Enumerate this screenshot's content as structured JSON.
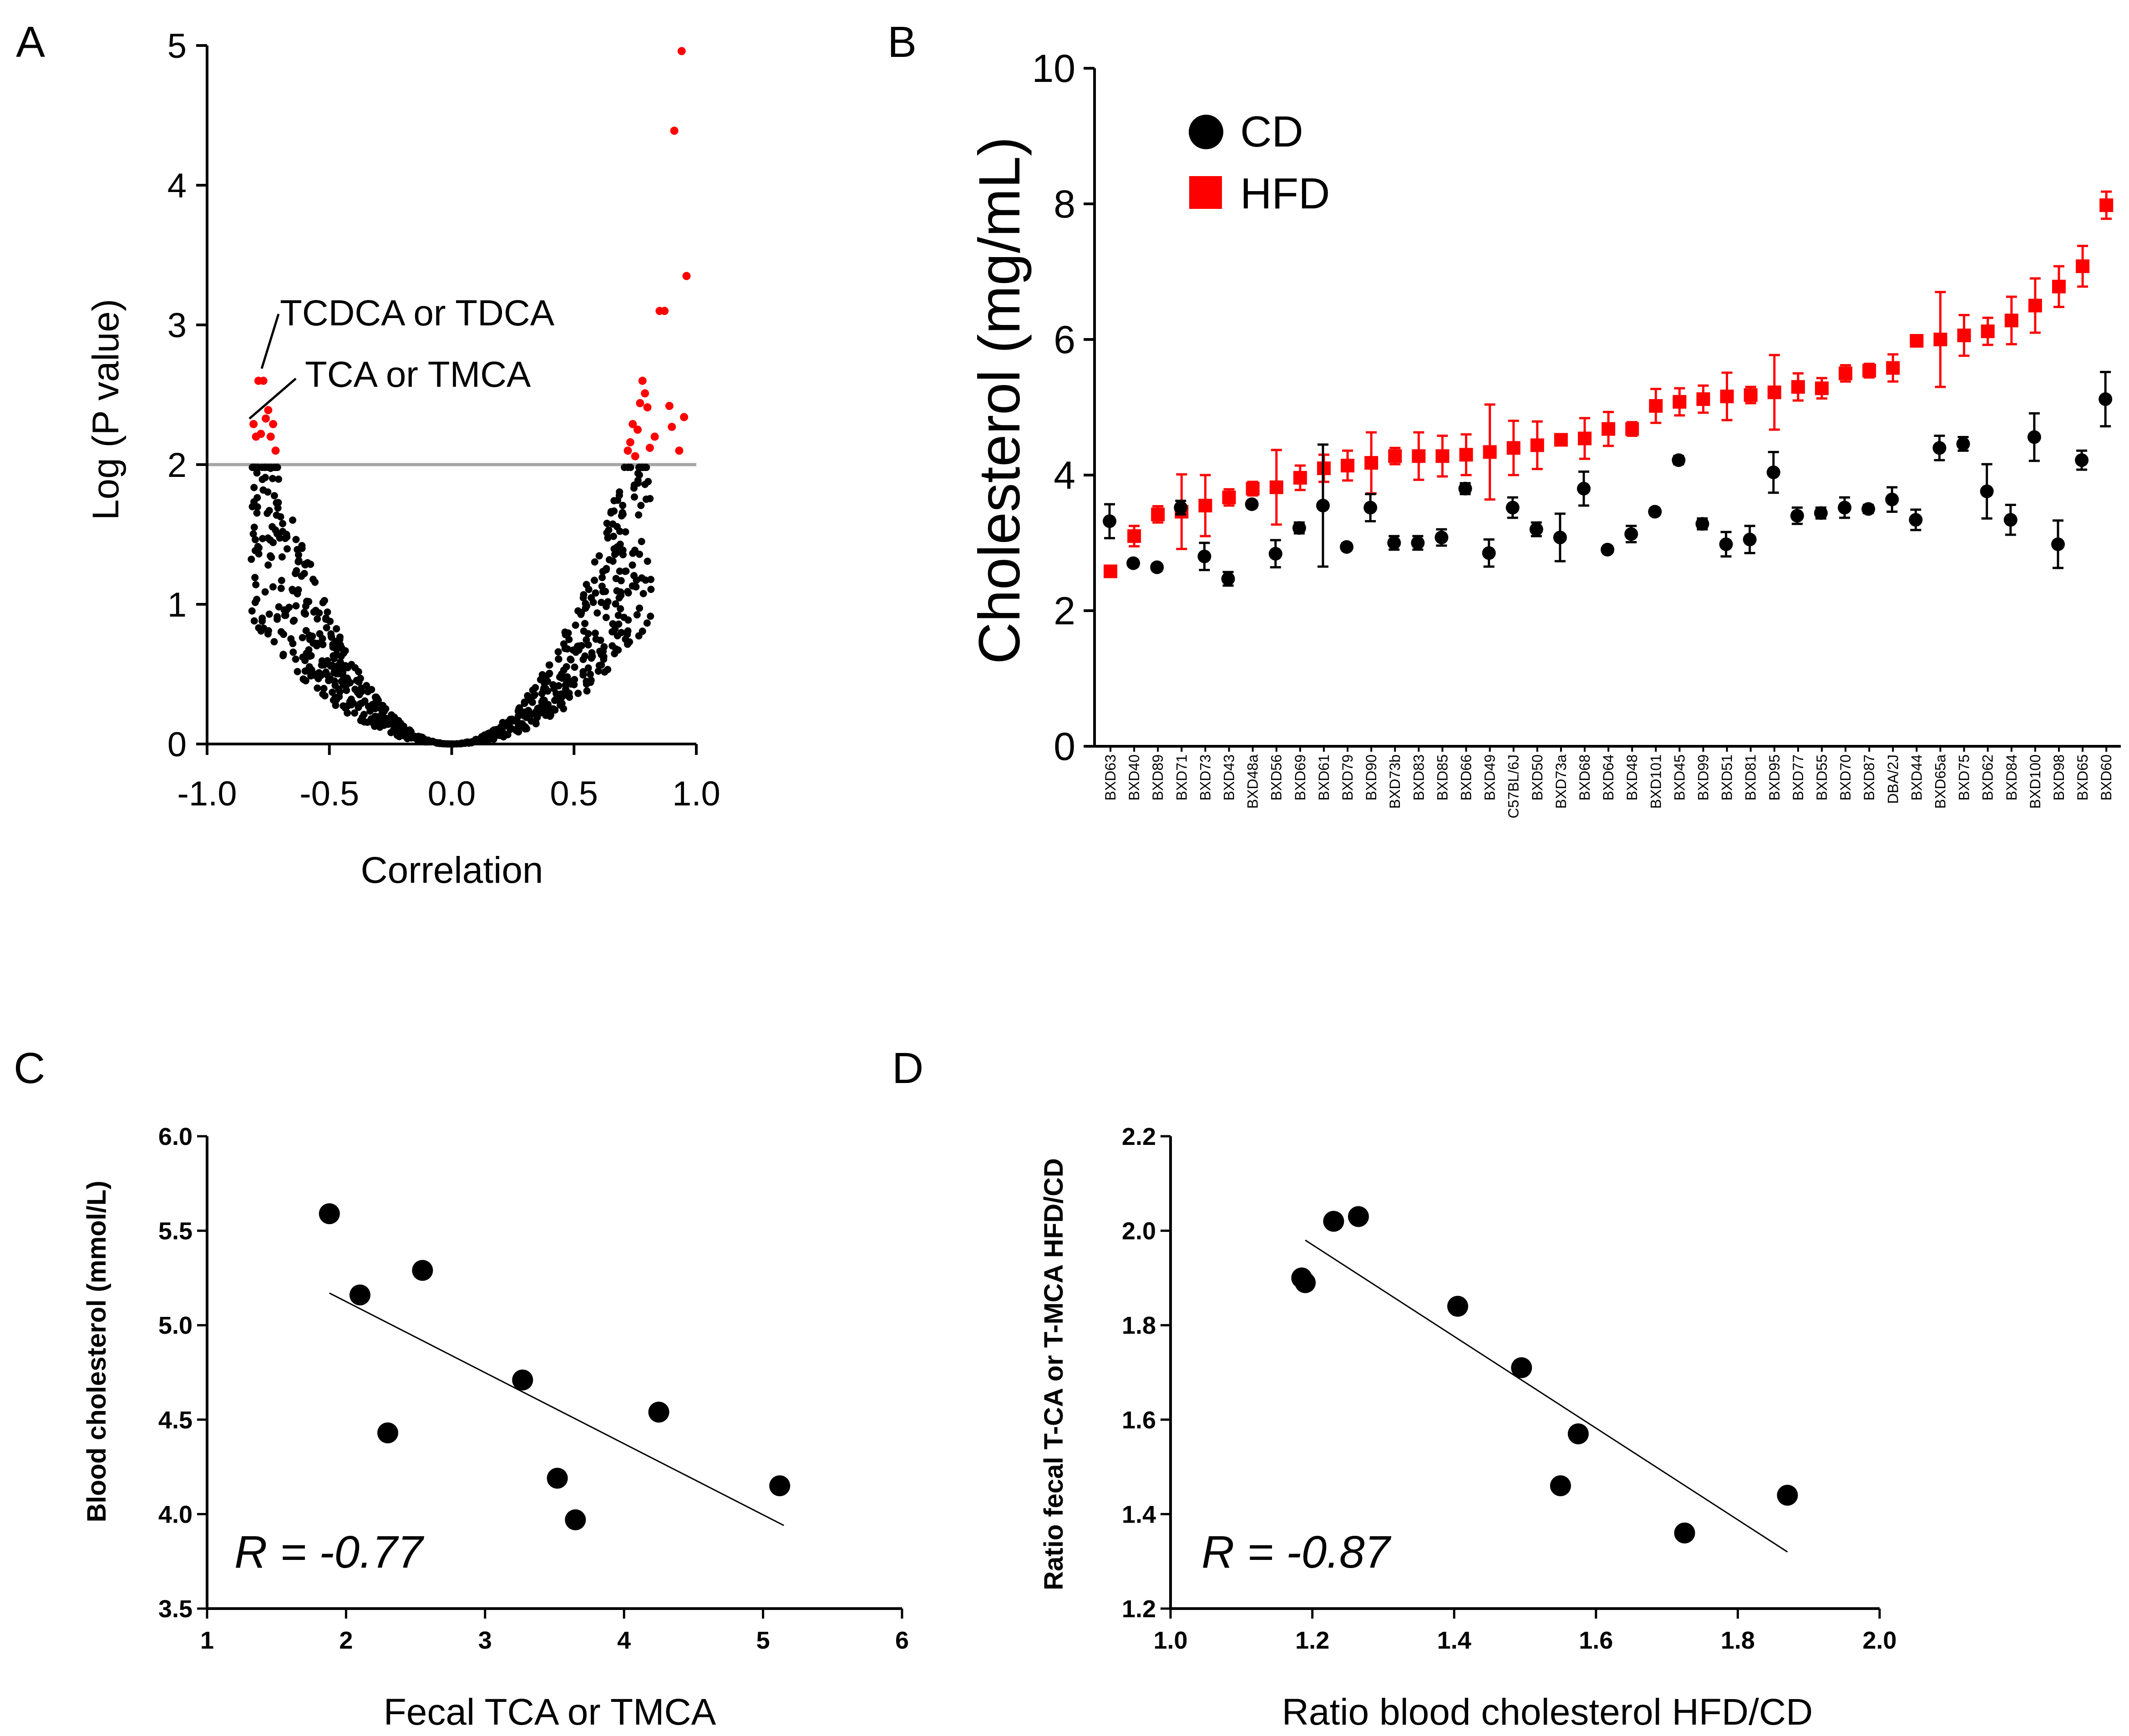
{
  "colors": {
    "cd": "#000000",
    "hfd": "#ff0000",
    "threshold": "#a6a6a6"
  },
  "chart_data": [
    {
      "panel": "A",
      "type": "scatter",
      "title": "",
      "xlabel": "Correlation",
      "ylabel": "Log (P value)",
      "xlim": [
        -1.0,
        1.0
      ],
      "ylim": [
        0,
        5
      ],
      "xticks": [
        "-1.0",
        "-0.5",
        "0.0",
        "0.5",
        "1.0"
      ],
      "yticks": [
        "0",
        "1",
        "2",
        "3",
        "4",
        "5"
      ],
      "threshold": 2,
      "annotations": [
        "TCDCA or TDCA",
        "TCA or TMCA"
      ],
      "significant": [
        {
          "x": -0.81,
          "y": 2.29
        },
        {
          "x": -0.8,
          "y": 2.2
        },
        {
          "x": -0.79,
          "y": 2.6
        },
        {
          "x": -0.77,
          "y": 2.6
        },
        {
          "x": -0.78,
          "y": 2.22
        },
        {
          "x": -0.76,
          "y": 2.33
        },
        {
          "x": -0.75,
          "y": 2.39
        },
        {
          "x": -0.74,
          "y": 2.2
        },
        {
          "x": -0.73,
          "y": 2.29
        },
        {
          "x": -0.72,
          "y": 2.1
        },
        {
          "x": 0.72,
          "y": 2.1
        },
        {
          "x": 0.73,
          "y": 2.16
        },
        {
          "x": 0.74,
          "y": 2.29
        },
        {
          "x": 0.75,
          "y": 2.06
        },
        {
          "x": 0.76,
          "y": 2.25
        },
        {
          "x": 0.77,
          "y": 2.44
        },
        {
          "x": 0.78,
          "y": 2.6
        },
        {
          "x": 0.79,
          "y": 2.51
        },
        {
          "x": 0.8,
          "y": 2.41
        },
        {
          "x": 0.81,
          "y": 2.12
        },
        {
          "x": 0.83,
          "y": 2.2
        },
        {
          "x": 0.85,
          "y": 3.1
        },
        {
          "x": 0.87,
          "y": 3.1
        },
        {
          "x": 0.89,
          "y": 2.42
        },
        {
          "x": 0.9,
          "y": 2.27
        },
        {
          "x": 0.91,
          "y": 4.39
        },
        {
          "x": 0.93,
          "y": 2.1
        },
        {
          "x": 0.95,
          "y": 2.34
        },
        {
          "x": 0.94,
          "y": 4.96
        },
        {
          "x": 0.96,
          "y": 3.35
        }
      ]
    },
    {
      "panel": "B",
      "type": "scatter",
      "title": "",
      "xlabel": "",
      "ylabel": "Cholesterol (mg/mL)",
      "ylim": [
        0,
        10
      ],
      "yticks": [
        "0",
        "2",
        "4",
        "6",
        "8",
        "10"
      ],
      "legend": [
        {
          "name": "CD",
          "marker": "circle"
        },
        {
          "name": "HFD",
          "marker": "square"
        }
      ],
      "categories": [
        "BXD63",
        "BXD40",
        "BXD89",
        "BXD71",
        "BXD73",
        "BXD43",
        "BXD48a",
        "BXD56",
        "BXD69",
        "BXD61",
        "BXD79",
        "BXD90",
        "BXD73b",
        "BXD83",
        "BXD85",
        "BXD66",
        "BXD49",
        "C57BL/6J",
        "BXD50",
        "BXD73a",
        "BXD68",
        "BXD64",
        "BXD48",
        "BXD101",
        "BXD45",
        "BXD99",
        "BXD51",
        "BXD81",
        "BXD95",
        "BXD77",
        "BXD55",
        "BXD70",
        "BXD87",
        "DBA/2J",
        "BXD44",
        "BXD65a",
        "BXD75",
        "BXD62",
        "BXD84",
        "BXD100",
        "BXD98",
        "BXD65",
        "BXD60"
      ],
      "series": [
        {
          "name": "CD",
          "values": [
            3.32,
            2.7,
            2.64,
            3.52,
            2.8,
            2.47,
            3.57,
            2.84,
            3.22,
            3.55,
            2.94,
            3.52,
            3.0,
            3.0,
            3.08,
            3.8,
            2.85,
            3.52,
            3.2,
            3.08,
            3.8,
            2.9,
            3.13,
            3.46,
            4.22,
            3.28,
            2.98,
            3.05,
            4.04,
            3.4,
            3.44,
            3.52,
            3.5,
            3.64,
            3.34,
            4.4,
            4.46,
            3.76,
            3.34,
            4.56,
            2.98,
            4.22,
            5.12
          ],
          "errors": [
            0.25,
            0.05,
            0.05,
            0.1,
            0.2,
            0.1,
            0.05,
            0.2,
            0.08,
            0.9,
            0.05,
            0.2,
            0.1,
            0.1,
            0.12,
            0.08,
            0.2,
            0.15,
            0.1,
            0.35,
            0.25,
            0.05,
            0.12,
            0.05,
            0.06,
            0.08,
            0.18,
            0.2,
            0.3,
            0.12,
            0.08,
            0.15,
            0.06,
            0.18,
            0.15,
            0.18,
            0.1,
            0.4,
            0.22,
            0.35,
            0.35,
            0.14,
            0.4
          ]
        },
        {
          "name": "HFD",
          "values": [
            2.58,
            3.1,
            3.42,
            3.46,
            3.55,
            3.67,
            3.8,
            3.82,
            3.96,
            4.1,
            4.14,
            4.18,
            4.28,
            4.28,
            4.28,
            4.3,
            4.34,
            4.4,
            4.44,
            4.52,
            4.54,
            4.68,
            4.68,
            5.02,
            5.08,
            5.12,
            5.16,
            5.18,
            5.22,
            5.3,
            5.28,
            5.5,
            5.54,
            5.58,
            5.98,
            6.0,
            6.06,
            6.12,
            6.28,
            6.5,
            6.78,
            7.08,
            7.98
          ]
        }
      ]
    },
    {
      "panel": "C",
      "type": "scatter",
      "title": "",
      "xlabel": "Fecal TCA or TMCA",
      "ylabel": "Blood cholesterol (mmol/L)",
      "xlim": [
        1,
        6
      ],
      "ylim": [
        3.5,
        6.0
      ],
      "xticks": [
        "1",
        "2",
        "3",
        "4",
        "5",
        "6"
      ],
      "yticks": [
        "3.5",
        "4.0",
        "4.5",
        "5.0",
        "5.5",
        "6.0"
      ],
      "points": [
        {
          "x": 1.88,
          "y": 5.59
        },
        {
          "x": 2.1,
          "y": 5.16
        },
        {
          "x": 2.3,
          "y": 4.43
        },
        {
          "x": 2.55,
          "y": 5.29
        },
        {
          "x": 3.27,
          "y": 4.71
        },
        {
          "x": 3.52,
          "y": 4.19
        },
        {
          "x": 3.65,
          "y": 3.97
        },
        {
          "x": 4.25,
          "y": 4.54
        },
        {
          "x": 5.12,
          "y": 4.15
        }
      ],
      "fit": [
        {
          "x": 1.88,
          "y": 5.17
        },
        {
          "x": 5.15,
          "y": 3.94
        }
      ],
      "r_label": "R = -0.77"
    },
    {
      "panel": "D",
      "type": "scatter",
      "title": "",
      "xlabel": "Ratio blood cholesterol HFD/CD",
      "ylabel": "Ratio fecal T-CA or T-MCA HFD/CD",
      "xlim": [
        1.0,
        2.0
      ],
      "ylim": [
        1.2,
        2.2
      ],
      "xticks": [
        "1.0",
        "1.2",
        "1.4",
        "1.6",
        "1.8",
        "2.0"
      ],
      "yticks": [
        "1.2",
        "1.4",
        "1.6",
        "1.8",
        "2.0",
        "2.2"
      ],
      "points": [
        {
          "x": 1.185,
          "y": 1.9
        },
        {
          "x": 1.19,
          "y": 1.89
        },
        {
          "x": 1.23,
          "y": 2.02
        },
        {
          "x": 1.265,
          "y": 2.03
        },
        {
          "x": 1.405,
          "y": 1.84
        },
        {
          "x": 1.495,
          "y": 1.71
        },
        {
          "x": 1.55,
          "y": 1.46
        },
        {
          "x": 1.575,
          "y": 1.57
        },
        {
          "x": 1.725,
          "y": 1.36
        },
        {
          "x": 1.87,
          "y": 1.44
        }
      ],
      "fit": [
        {
          "x": 1.19,
          "y": 1.98
        },
        {
          "x": 1.87,
          "y": 1.32
        }
      ],
      "r_label": "R = -0.87"
    }
  ],
  "panel_letters": [
    "A",
    "B",
    "C",
    "D"
  ]
}
